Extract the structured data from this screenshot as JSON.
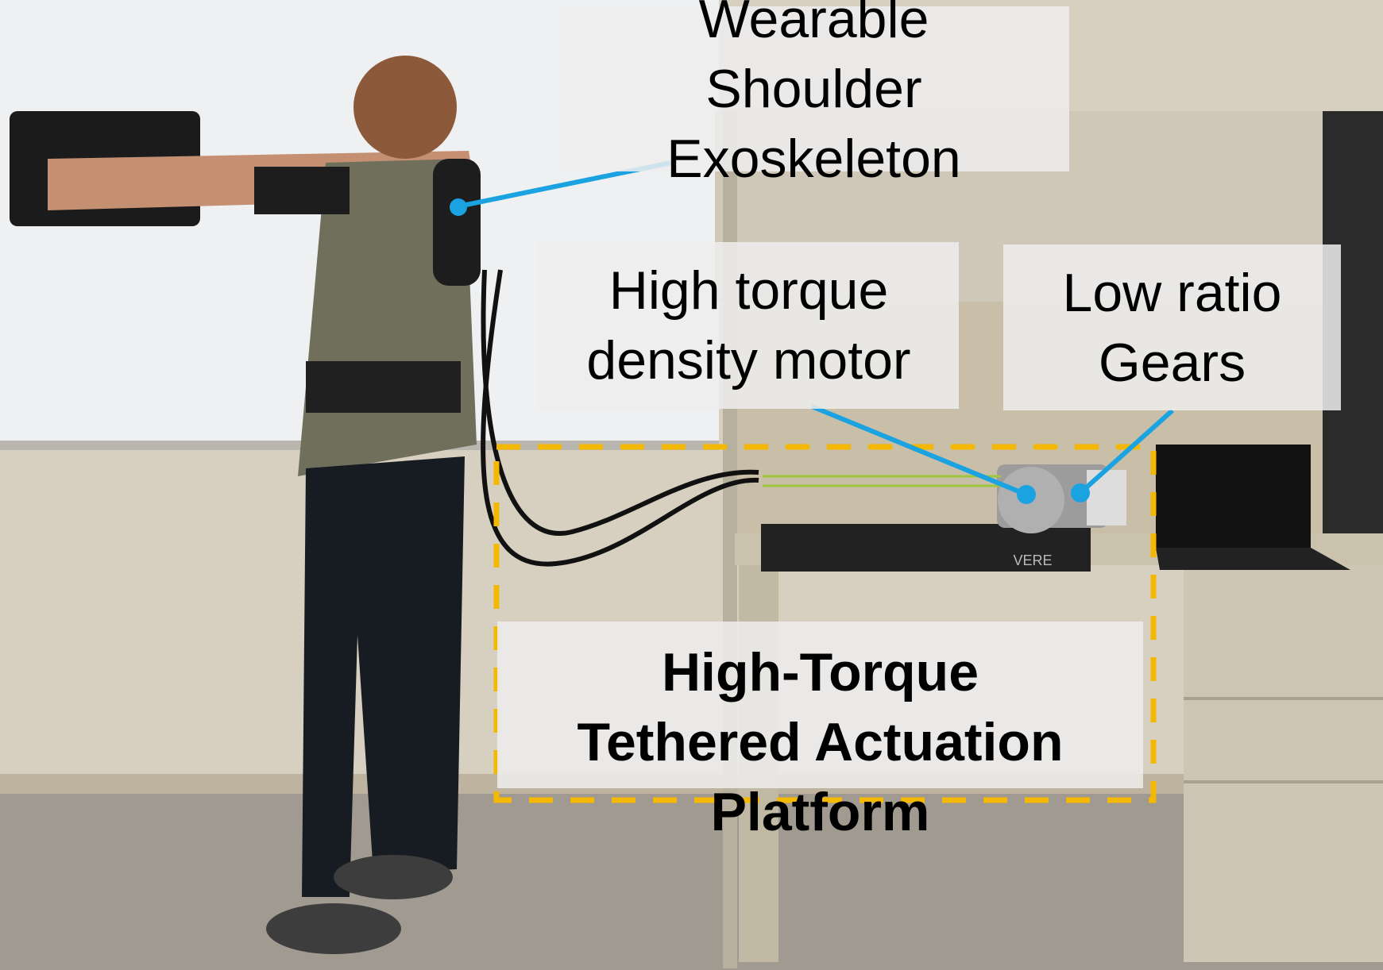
{
  "labels": {
    "exoskeleton": [
      "Wearable",
      "Shoulder",
      "Exoskeleton"
    ],
    "motor": [
      "High torque",
      "density motor"
    ],
    "gears": [
      "Low ratio",
      "Gears"
    ],
    "platform": [
      "High-Torque",
      "Tethered Actuation",
      "Platform"
    ]
  },
  "colors": {
    "callout_line": "#1aa3e0",
    "dashed_box": "#f5b800",
    "label_background": "#eeeeee"
  },
  "photo": {
    "desk_brand_text": "VERE"
  }
}
